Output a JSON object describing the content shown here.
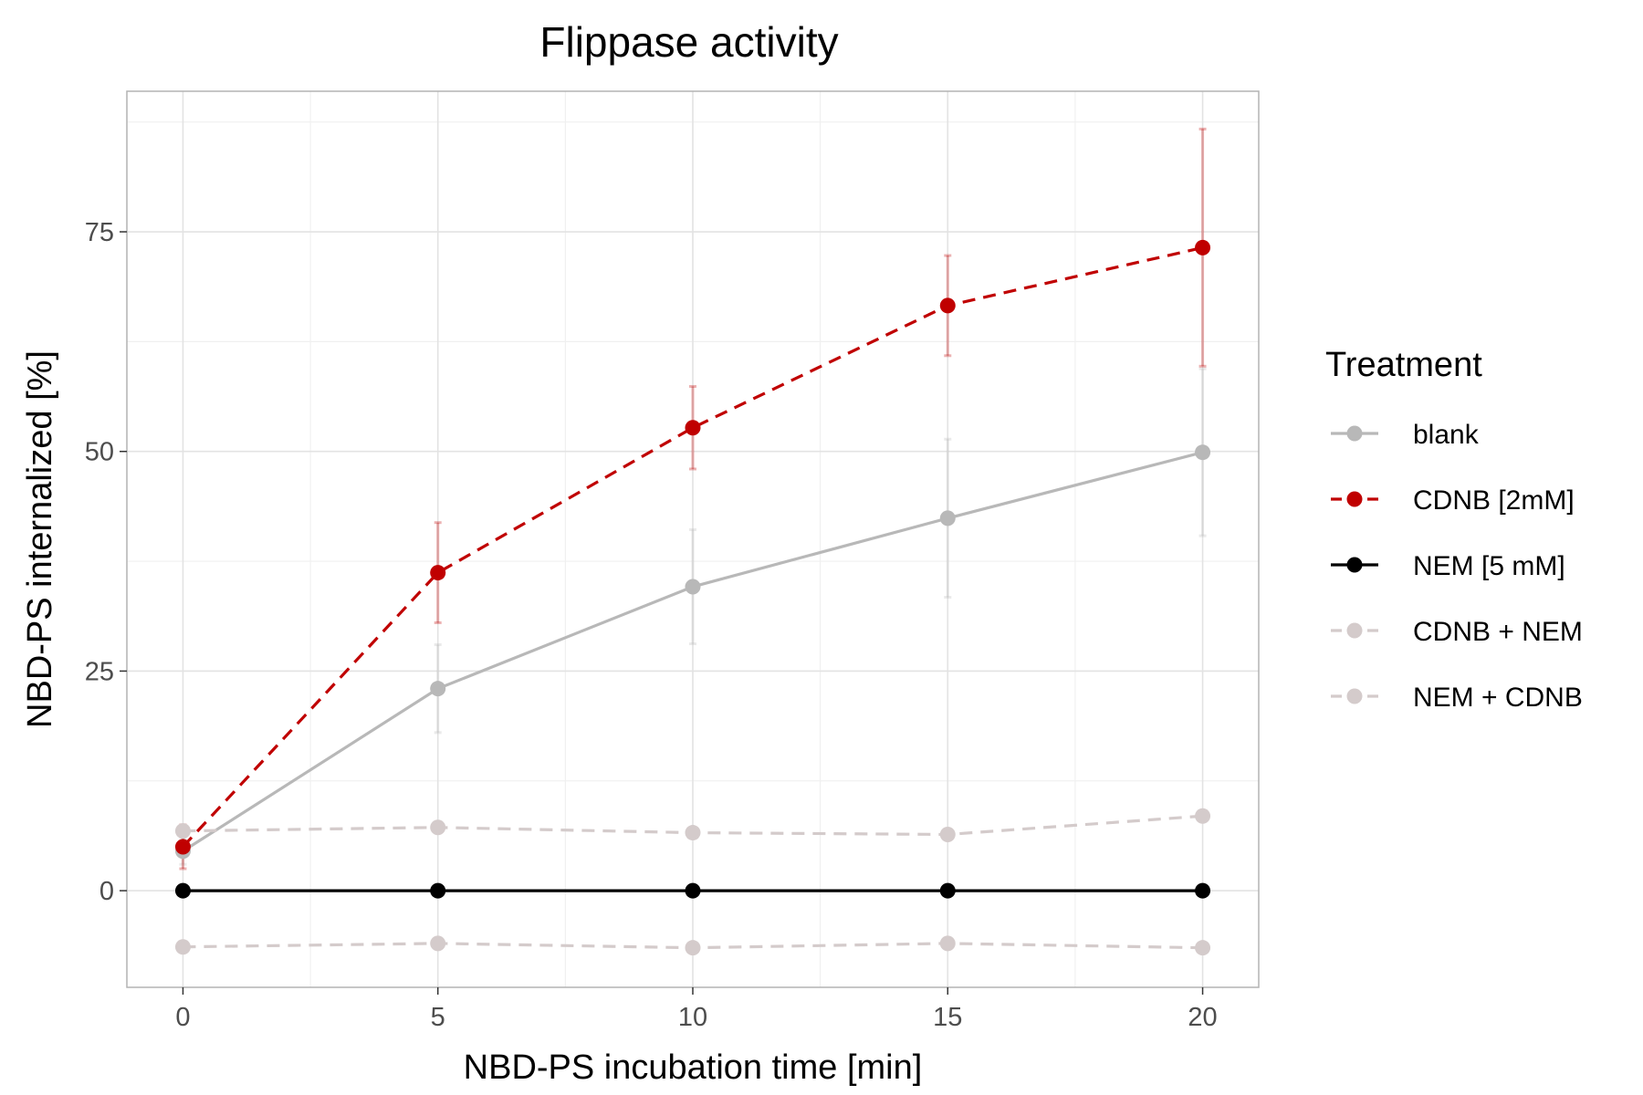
{
  "chart_data": {
    "type": "line",
    "title": "Flippase activity",
    "xlabel": "NBD-PS incubation time [min]",
    "ylabel": "NBD-PS internalized [%]",
    "x": [
      0,
      5,
      10,
      15,
      20
    ],
    "x_ticks": [
      "0",
      "5",
      "10",
      "15",
      "20"
    ],
    "y_ticks": [
      "0",
      "25",
      "50",
      "75"
    ],
    "xlim": [
      -1.1,
      21.1
    ],
    "ylim": [
      -11,
      91
    ],
    "grid": true,
    "legend": {
      "title": "Treatment",
      "placement": "right"
    },
    "series": [
      {
        "name": "blank",
        "color": "#b8b8b8",
        "dash": "solid",
        "values": [
          4.5,
          23,
          34.6,
          42.4,
          49.9
        ],
        "error": [
          1.5,
          5,
          6.5,
          9,
          9.5
        ]
      },
      {
        "name": "NEM + CDNB",
        "color": "#d4cbcb",
        "dash": "dashed",
        "values": [
          -6.4,
          -6,
          -6.5,
          -6,
          -6.5
        ],
        "error": [
          0,
          0,
          0,
          0,
          0
        ]
      },
      {
        "name": "CDNB + NEM",
        "color": "#d4cbcb",
        "dash": "dashed",
        "values": [
          6.8,
          7.2,
          6.6,
          6.4,
          8.5
        ],
        "error": [
          0,
          0,
          0,
          0,
          0
        ]
      },
      {
        "name": "NEM [5 mM]",
        "color": "#000000",
        "dash": "solid",
        "values": [
          0,
          0,
          0,
          0,
          0
        ],
        "error": [
          0,
          0,
          0,
          0,
          0
        ]
      },
      {
        "name": "CDNB [2mM]",
        "color": "#c00000",
        "dash": "dashed",
        "values": [
          5,
          36.2,
          52.7,
          66.6,
          73.2
        ],
        "error": [
          2.5,
          5.7,
          4.7,
          5.7,
          13.5
        ]
      }
    ],
    "legend_order": [
      "blank",
      "CDNB [2mM]",
      "NEM [5 mM]",
      "CDNB + NEM",
      "NEM + CDNB"
    ]
  }
}
